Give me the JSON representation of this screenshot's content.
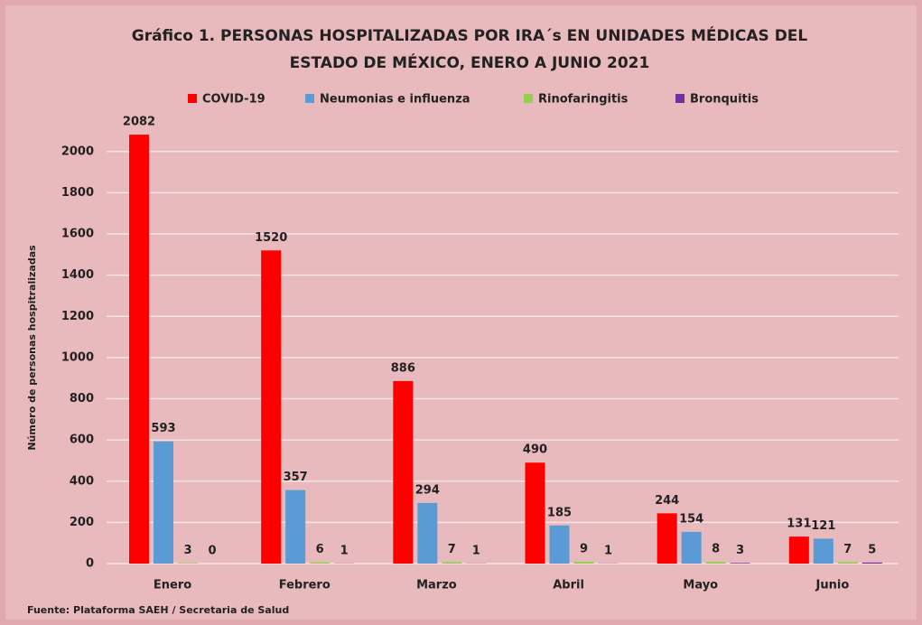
{
  "chart_data": {
    "type": "bar",
    "title": [
      "Gráfico 1. PERSONAS HOSPITALIZADAS POR IRA´s EN UNIDADES MÉDICAS DEL",
      "ESTADO DE MÉXICO, ENERO A JUNIO 2021"
    ],
    "ylabel": "Número de personas hospitralizadas",
    "source": "Fuente: Plataforma SAEH / Secretaria de Salud",
    "categories": [
      "Enero",
      "Febrero",
      "Marzo",
      "Abril",
      "Mayo",
      "Junio"
    ],
    "series": [
      {
        "name": "COVID-19",
        "color": "#ff0000",
        "values": [
          2082,
          1520,
          886,
          490,
          244,
          131
        ]
      },
      {
        "name": "Neumonias e influenza",
        "color": "#5b9bd5",
        "values": [
          593,
          357,
          294,
          185,
          154,
          121
        ]
      },
      {
        "name": "Rinofaringitis",
        "color": "#92d050",
        "values": [
          3,
          6,
          7,
          9,
          8,
          7
        ]
      },
      {
        "name": "Bronquitis",
        "color": "#7030a0",
        "values": [
          0,
          1,
          1,
          1,
          3,
          5
        ]
      }
    ],
    "ylim": [
      0,
      2100
    ],
    "yticks": [
      0,
      200,
      400,
      600,
      800,
      1000,
      1200,
      1400,
      1600,
      1800,
      2000
    ],
    "grid": true,
    "legend": "top"
  }
}
